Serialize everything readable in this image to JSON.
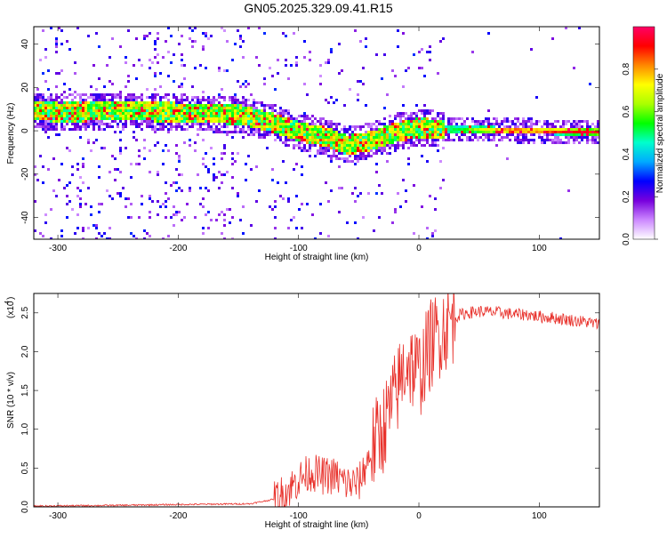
{
  "title": "GN05.2025.329.09.41.R15",
  "chart_data": [
    {
      "type": "heatmap",
      "xlabel": "Height of straight line (km)",
      "ylabel": "Frequency (Hz)",
      "xlim": [
        -320,
        150
      ],
      "ylim": [
        -50,
        48
      ],
      "xticks": [
        -300,
        -200,
        -100,
        0,
        100
      ],
      "yticks": [
        -40,
        -20,
        0,
        20,
        40
      ],
      "colorbar": {
        "label": "Normalized spectral amplitude",
        "range": [
          0.0,
          1.0
        ],
        "ticks": [
          0.0,
          0.2,
          0.4,
          0.6,
          0.8
        ],
        "tick_labels": [
          "0.0",
          "0.2",
          "0.4",
          "0.6",
          "0.8"
        ],
        "colors": [
          "#ffffff",
          "#cc88ff",
          "#7700dd",
          "#0000ff",
          "#00aaff",
          "#00ffcc",
          "#00ff00",
          "#aaff00",
          "#ffff00",
          "#ff8800",
          "#ff0000",
          "#ff0066"
        ]
      },
      "ridge": {
        "x": [
          -320,
          -300,
          -250,
          -200,
          -150,
          -120,
          -100,
          -80,
          -60,
          -40,
          -20,
          0,
          20,
          50,
          100,
          150
        ],
        "frequency": [
          10,
          9,
          10,
          9,
          8,
          4,
          0,
          -2,
          -6,
          -4,
          0,
          2,
          1,
          1,
          0.5,
          0
        ]
      },
      "grid": false
    },
    {
      "type": "line",
      "xlabel": "Height of straight line (km)",
      "ylabel": "SNR (10 * v/v)",
      "yscale_label": "(x10",
      "yscale_exp": "4",
      "xlim": [
        -320,
        150
      ],
      "ylim": [
        0,
        2.75
      ],
      "xticks": [
        -300,
        -200,
        -100,
        0,
        100
      ],
      "yticks": [
        0.0,
        0.5,
        1.0,
        1.5,
        2.0,
        2.5
      ],
      "ytick_labels": [
        "0.0",
        "0.5",
        "1.0",
        "1.5",
        "2.0",
        "2.5"
      ],
      "series_color": "#e8302a",
      "x": [
        -320,
        -250,
        -200,
        -140,
        -120,
        -110,
        -100,
        -90,
        -80,
        -70,
        -60,
        -50,
        -40,
        -30,
        -20,
        -10,
        0,
        10,
        20,
        30,
        40,
        50,
        60,
        70,
        80,
        90,
        100,
        110,
        120,
        130,
        140,
        150
      ],
      "y": [
        0.01,
        0.02,
        0.03,
        0.04,
        0.1,
        0.2,
        0.35,
        0.45,
        0.4,
        0.4,
        0.3,
        0.3,
        0.7,
        1.0,
        1.4,
        1.9,
        1.7,
        2.1,
        2.3,
        2.45,
        2.5,
        2.52,
        2.51,
        2.5,
        2.48,
        2.48,
        2.45,
        2.44,
        2.42,
        2.4,
        2.38,
        2.35
      ],
      "grid": false
    }
  ]
}
